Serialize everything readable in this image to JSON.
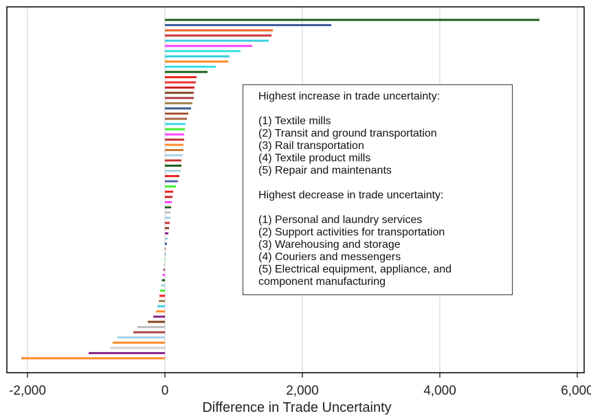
{
  "chart_data": {
    "type": "bar",
    "orientation": "horizontal",
    "xlabel": "Difference in Trade Uncertainty",
    "xlim": [
      -2300,
      6100
    ],
    "xticks": [
      -2000,
      0,
      2000,
      4000,
      6000
    ],
    "xtick_labels": [
      "-2,000",
      "0",
      "2,000",
      "4,000",
      "6,000"
    ],
    "grid": "vertical",
    "values": [
      5450,
      2420,
      1570,
      1550,
      1510,
      1270,
      1100,
      940,
      920,
      740,
      620,
      460,
      450,
      430,
      420,
      420,
      400,
      380,
      340,
      320,
      300,
      290,
      280,
      280,
      270,
      270,
      260,
      240,
      240,
      230,
      210,
      190,
      160,
      120,
      110,
      100,
      90,
      80,
      80,
      70,
      60,
      50,
      40,
      30,
      10,
      5,
      -5,
      -15,
      -25,
      -35,
      -45,
      -55,
      -70,
      -80,
      -90,
      -110,
      -130,
      -170,
      -250,
      -400,
      -460,
      -690,
      -760,
      -800,
      -1110,
      -2090
    ],
    "colors": [
      "#1a5e1a",
      "#3a5a9a",
      "#e8682a",
      "#cc3333",
      "#40d0e0",
      "#ff44ff",
      "#40e0e0",
      "#30d0e0",
      "#ff8a2a",
      "#30e0e8",
      "#1a5e1a",
      "#ee2222",
      "#ee3333",
      "#cc2222",
      "#884422",
      "#aa4444",
      "#a08050",
      "#3a5a9a",
      "#aa5533",
      "#aa6644",
      "#40d8f0",
      "#44ee33",
      "#ff44ff",
      "#cc3333",
      "#ff8a2a",
      "#c87a30",
      "#a8d0e8",
      "#cc3333",
      "#1a5e1a",
      "#a8d0e8",
      "#ee2222",
      "#5566aa",
      "#44ee33",
      "#ee2222",
      "#cc2222",
      "#ff44ff",
      "#1a5e1a",
      "#c0c0c0",
      "#a8d0e8",
      "#cc3333",
      "#884422",
      "#882288",
      "#a8d0e8",
      "#3a5a9a",
      "#aa3333",
      "#3a7ad0",
      "#44ee33",
      "#c0c0c0",
      "#aa4444",
      "#ff44ff",
      "#1a5e1a",
      "#a8d0e8",
      "#44ee33",
      "#ee2222",
      "#a08050",
      "#40d0e0",
      "#ff8a2a",
      "#882288",
      "#884422",
      "#c0c0c0",
      "#aa4444",
      "#a8d0e8",
      "#ff8a2a",
      "#d0d0d0",
      "#882288",
      "#ff8a2a"
    ]
  },
  "annotation": {
    "increase_heading": "Highest increase in trade uncertainty:",
    "increase_items": [
      "(1) Textile mills",
      "(2) Transit and ground transportation",
      "(3) Rail transportation",
      "(4) Textile product mills",
      "(5) Repair and maintenants"
    ],
    "decrease_heading": "Highest decrease in trade uncertainty:",
    "decrease_items": [
      "(1) Personal and laundry services",
      "(2) Support activities for transportation",
      "(3) Warehousing and storage",
      "(4) Couriers and messengers",
      "(5) Electrical equipment, appliance, and component manufacturing"
    ]
  }
}
